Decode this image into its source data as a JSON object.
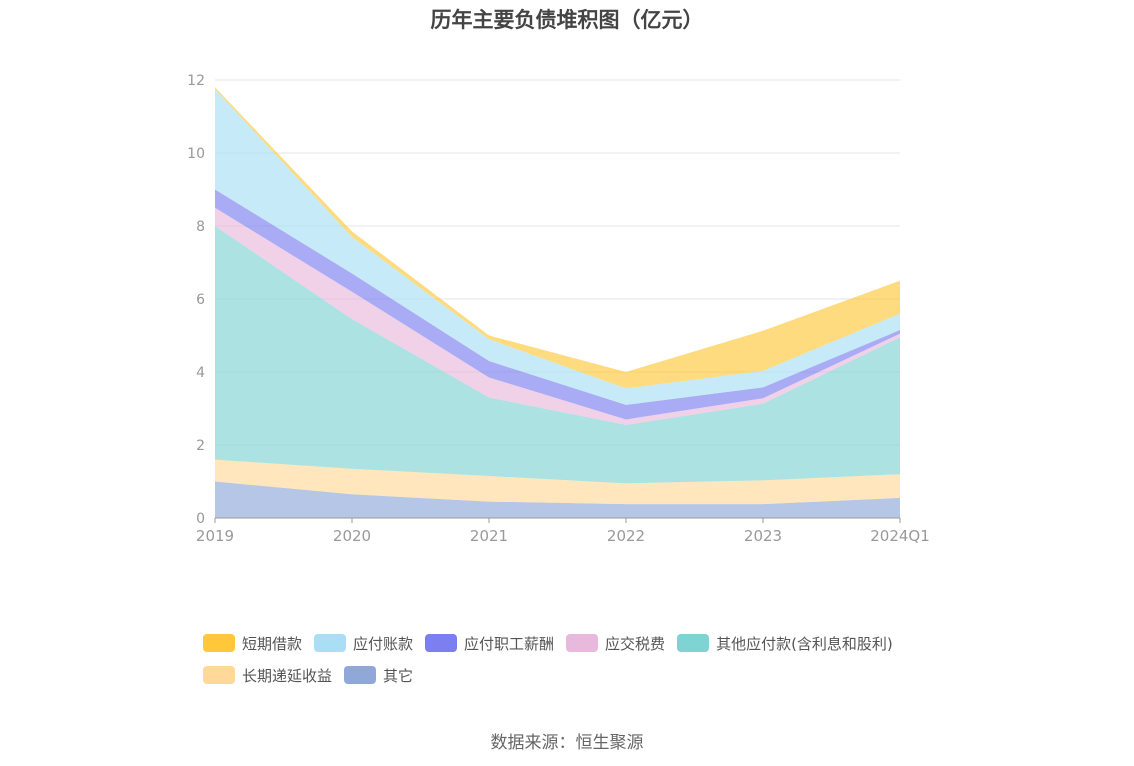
{
  "chart_data": {
    "type": "area",
    "stacked": true,
    "title": "历年主要负债堆积图（亿元）",
    "categories": [
      "2019",
      "2020",
      "2021",
      "2022",
      "2023",
      "2024Q1"
    ],
    "ylim": [
      0,
      12
    ],
    "yticks": [
      "0",
      "2",
      "4",
      "6",
      "8",
      "10",
      "12"
    ],
    "grid": true,
    "legend_position": "bottom",
    "series": [
      {
        "name": "其它",
        "color": "#8fa8d8",
        "values": [
          1.0,
          0.65,
          0.45,
          0.38,
          0.38,
          0.55
        ]
      },
      {
        "name": "长期递延收益",
        "color": "#ffd89a",
        "values": [
          0.6,
          0.7,
          0.7,
          0.57,
          0.65,
          0.65
        ]
      },
      {
        "name": "其他应付款(含利息和股利)",
        "color": "#7fd3d3",
        "values": [
          6.4,
          4.1,
          2.15,
          1.6,
          2.1,
          3.75
        ]
      },
      {
        "name": "应交税费",
        "color": "#e8b9dc",
        "values": [
          0.5,
          0.75,
          0.55,
          0.15,
          0.15,
          0.1
        ]
      },
      {
        "name": "应付职工薪酬",
        "color": "#7b7ff0",
        "values": [
          0.5,
          0.5,
          0.45,
          0.4,
          0.3,
          0.1
        ]
      },
      {
        "name": "应付账款",
        "color": "#a9def5",
        "values": [
          2.75,
          1.0,
          0.6,
          0.45,
          0.45,
          0.45
        ]
      },
      {
        "name": "短期借款",
        "color": "#ffc73a",
        "values": [
          0.05,
          0.15,
          0.1,
          0.45,
          1.1,
          0.9
        ]
      }
    ]
  },
  "legend": {
    "rows": [
      [
        {
          "label": "短期借款",
          "color": "#ffc73a"
        },
        {
          "label": "应付账款",
          "color": "#a9def5"
        },
        {
          "label": "应付职工薪酬",
          "color": "#7b7ff0"
        },
        {
          "label": "应交税费",
          "color": "#e8b9dc"
        },
        {
          "label": "其他应付款(含利息和股利)",
          "color": "#7fd3d3"
        }
      ],
      [
        {
          "label": "长期递延收益",
          "color": "#ffd89a"
        },
        {
          "label": "其它",
          "color": "#8fa8d8"
        }
      ]
    ]
  },
  "source": "数据来源：恒生聚源"
}
